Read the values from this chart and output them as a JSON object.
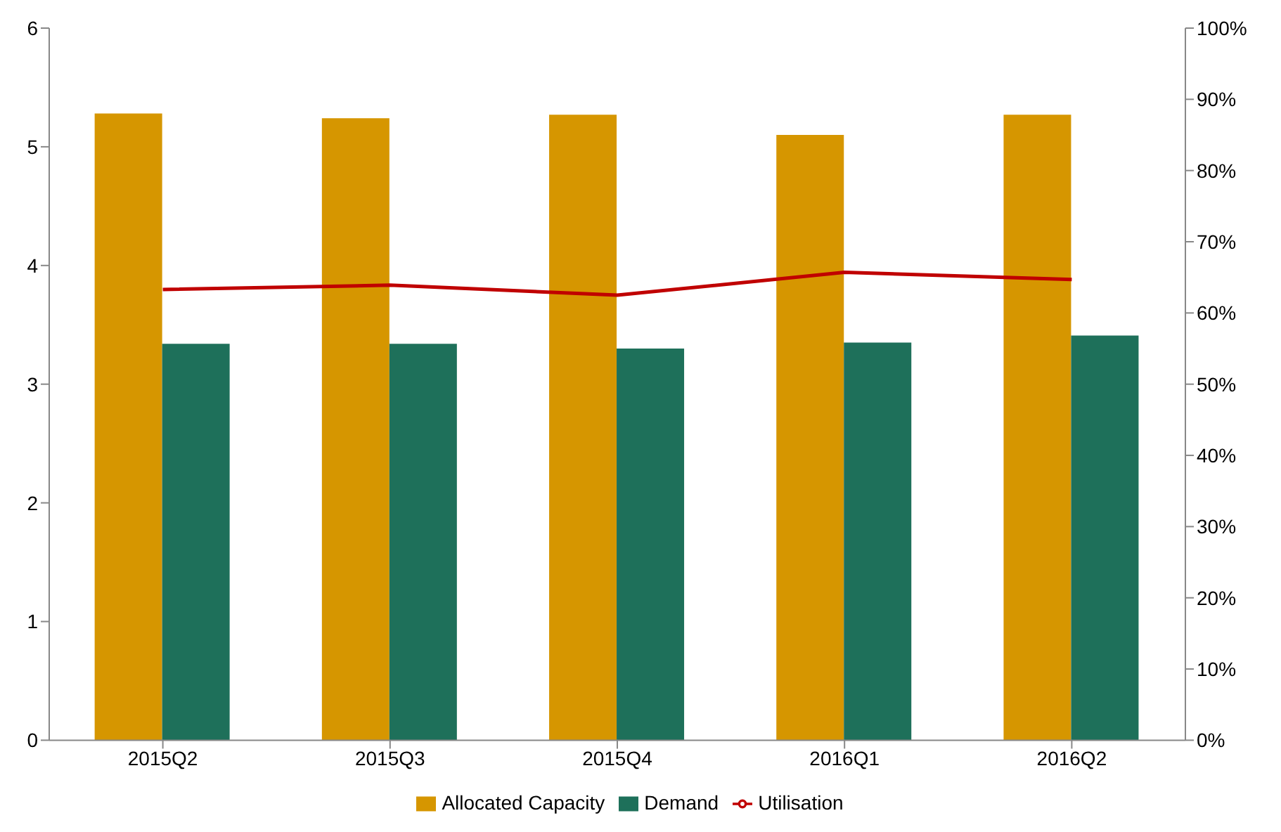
{
  "chart_data": {
    "type": "bar",
    "categories": [
      "2015Q2",
      "2015Q3",
      "2015Q4",
      "2016Q1",
      "2016Q2"
    ],
    "series": [
      {
        "name": "Allocated Capacity",
        "color": "#d69600",
        "values": [
          5.28,
          5.24,
          5.27,
          5.1,
          5.27
        ]
      },
      {
        "name": "Demand",
        "color": "#1e705a",
        "values": [
          3.34,
          3.34,
          3.3,
          3.35,
          3.41
        ]
      },
      {
        "name": "Utilisation",
        "type": "line",
        "axis": "y2",
        "color": "#c00000",
        "values": [
          63.3,
          63.9,
          62.5,
          65.7,
          64.7
        ]
      }
    ],
    "ylim": [
      0,
      6
    ],
    "yticks": [
      0,
      1,
      2,
      3,
      4,
      5,
      6
    ],
    "y2lim": [
      0,
      100
    ],
    "y2ticks": [
      {
        "value": 0,
        "label": "0%"
      },
      {
        "value": 10,
        "label": "10%"
      },
      {
        "value": 20,
        "label": "20%"
      },
      {
        "value": 30,
        "label": "30%"
      },
      {
        "value": 40,
        "label": "40%"
      },
      {
        "value": 50,
        "label": "50%"
      },
      {
        "value": 60,
        "label": "60%"
      },
      {
        "value": 70,
        "label": "70%"
      },
      {
        "value": 80,
        "label": "80%"
      },
      {
        "value": 90,
        "label": "90%"
      },
      {
        "value": 100,
        "label": "100%"
      }
    ],
    "grid": false,
    "legend": "bottom",
    "marker": "none"
  }
}
